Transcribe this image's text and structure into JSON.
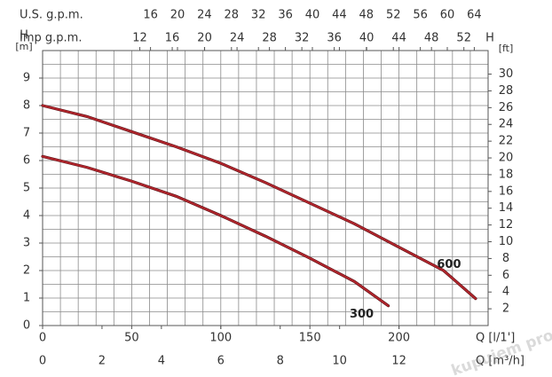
{
  "chart_data": {
    "type": "line",
    "xlabel": "Q [l/1']",
    "xlim": [
      0,
      250
    ],
    "xticks": [
      0,
      50,
      100,
      150,
      200
    ],
    "x2label": "Q [m³/h]",
    "x2lim": [
      0,
      15
    ],
    "x2ticks": [
      0,
      2,
      4,
      6,
      8,
      10,
      12
    ],
    "top_us_label": "U.S. g.p.m.",
    "top_us_lim": [
      0,
      66.05
    ],
    "top_us_ticks": [
      16,
      20,
      24,
      28,
      32,
      36,
      40,
      44,
      48,
      52,
      56,
      60,
      64
    ],
    "top_imp_label": "Imp g.p.m.",
    "top_imp_lim": [
      0,
      54.99
    ],
    "top_imp_ticks": [
      12,
      16,
      20,
      24,
      28,
      32,
      36,
      40,
      44,
      48,
      52
    ],
    "ylabel": "H",
    "yunit": "[m]",
    "ylim": [
      0,
      10
    ],
    "yticks": [
      0,
      1,
      2,
      3,
      4,
      5,
      6,
      7,
      8,
      9
    ],
    "y2label": "H",
    "y2unit": "[ft]",
    "y2lim": [
      0,
      32.81
    ],
    "y2ticks": [
      2,
      4,
      6,
      8,
      10,
      12,
      14,
      16,
      18,
      20,
      22,
      24,
      26,
      28,
      30
    ],
    "grid": true,
    "xgrid_step": 10,
    "ygrid_step": 0.5,
    "series": [
      {
        "name": "600",
        "color": "#b3262d",
        "x": [
          0,
          25,
          50,
          75,
          100,
          125,
          150,
          175,
          200,
          225,
          243
        ],
        "values": [
          8.0,
          7.6,
          7.05,
          6.5,
          5.9,
          5.2,
          4.45,
          3.7,
          2.85,
          2.0,
          0.98
        ]
      },
      {
        "name": "300",
        "color": "#b3262d",
        "x": [
          0,
          25,
          50,
          75,
          100,
          125,
          150,
          175,
          194
        ],
        "values": [
          6.15,
          5.75,
          5.25,
          4.7,
          4.0,
          3.25,
          2.45,
          1.6,
          0.72
        ]
      }
    ],
    "watermark": "kupujem prodajem"
  }
}
